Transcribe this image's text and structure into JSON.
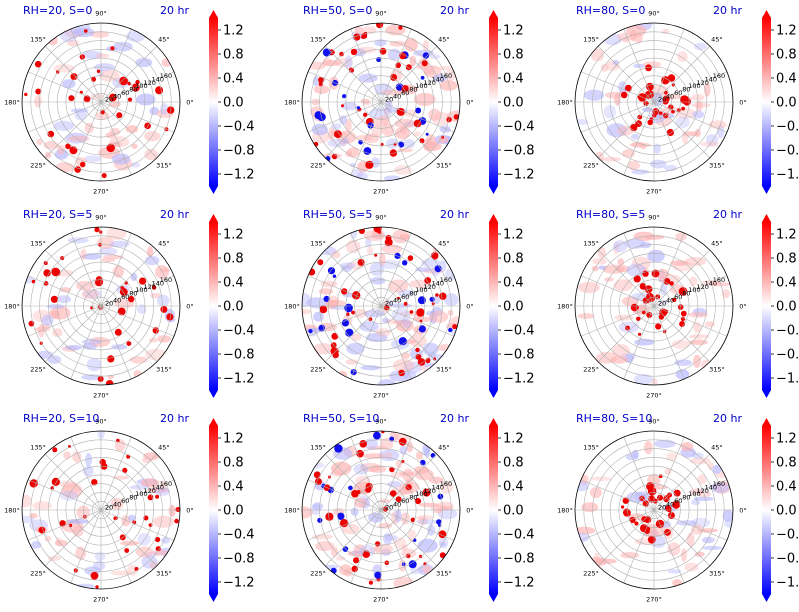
{
  "figure": {
    "time_label": "20 hr",
    "colormap": "bwr",
    "colorbar_ticks": [
      "1.2",
      "0.8",
      "0.4",
      "0.0",
      "−0.4",
      "−0.8",
      "−1.2"
    ],
    "colorbar_tick_values": [
      1.2,
      0.8,
      0.4,
      0.0,
      -0.4,
      -0.8,
      -1.2
    ],
    "colorbar_range": [
      -1.4,
      1.4
    ],
    "colorbar_extend": "both"
  },
  "chart_data": [
    {
      "type": "heatmap",
      "projection": "polar",
      "title": "RH=20, S=0",
      "title_right": "20 hr",
      "angle_ticks": [
        "0°",
        "45°",
        "90°",
        "135°",
        "180°",
        "225°",
        "270°",
        "315°"
      ],
      "radial_ticks": [
        "20",
        "40",
        "60",
        "80",
        "100",
        "120",
        "140",
        "160"
      ],
      "rlim": [
        0,
        180
      ]
    },
    {
      "type": "heatmap",
      "projection": "polar",
      "title": "RH=50, S=0",
      "title_right": "20 hr",
      "angle_ticks": [
        "0°",
        "45°",
        "90°",
        "135°",
        "180°",
        "225°",
        "270°",
        "315°"
      ],
      "radial_ticks": [
        "20",
        "40",
        "60",
        "80",
        "100",
        "120",
        "140",
        "160"
      ],
      "rlim": [
        0,
        180
      ]
    },
    {
      "type": "heatmap",
      "projection": "polar",
      "title": "RH=80, S=0",
      "title_right": "20 hr",
      "angle_ticks": [
        "0°",
        "45°",
        "90°",
        "135°",
        "180°",
        "225°",
        "270°",
        "315°"
      ],
      "radial_ticks": [
        "20",
        "40",
        "60",
        "80",
        "100",
        "120",
        "140",
        "160"
      ],
      "rlim": [
        0,
        180
      ]
    },
    {
      "type": "heatmap",
      "projection": "polar",
      "title": "RH=20, S=5",
      "title_right": "20 hr",
      "angle_ticks": [
        "0°",
        "45°",
        "90°",
        "135°",
        "180°",
        "225°",
        "270°",
        "315°"
      ],
      "radial_ticks": [
        "20",
        "40",
        "60",
        "80",
        "100",
        "120",
        "140",
        "160"
      ],
      "rlim": [
        0,
        180
      ]
    },
    {
      "type": "heatmap",
      "projection": "polar",
      "title": "RH=50, S=5",
      "title_right": "20 hr",
      "angle_ticks": [
        "0°",
        "45°",
        "90°",
        "135°",
        "180°",
        "225°",
        "270°",
        "315°"
      ],
      "radial_ticks": [
        "20",
        "40",
        "60",
        "80",
        "100",
        "120",
        "140",
        "160"
      ],
      "rlim": [
        0,
        180
      ]
    },
    {
      "type": "heatmap",
      "projection": "polar",
      "title": "RH=80, S=5",
      "title_right": "20 hr",
      "angle_ticks": [
        "0°",
        "45°",
        "90°",
        "135°",
        "180°",
        "225°",
        "270°",
        "315°"
      ],
      "radial_ticks": [
        "20",
        "40",
        "60",
        "80",
        "100",
        "120",
        "140",
        "160"
      ],
      "rlim": [
        0,
        180
      ]
    },
    {
      "type": "heatmap",
      "projection": "polar",
      "title": "RH=20, S=10",
      "title_right": "20 hr",
      "angle_ticks": [
        "0°",
        "45°",
        "90°",
        "135°",
        "180°",
        "225°",
        "270°",
        "315°"
      ],
      "radial_ticks": [
        "20",
        "40",
        "60",
        "80",
        "100",
        "120",
        "140",
        "160"
      ],
      "rlim": [
        0,
        180
      ]
    },
    {
      "type": "heatmap",
      "projection": "polar",
      "title": "RH=50, S=10",
      "title_right": "20 hr",
      "angle_ticks": [
        "0°",
        "45°",
        "90°",
        "135°",
        "180°",
        "225°",
        "270°",
        "315°"
      ],
      "radial_ticks": [
        "20",
        "40",
        "60",
        "80",
        "100",
        "120",
        "140",
        "160"
      ],
      "rlim": [
        0,
        180
      ]
    },
    {
      "type": "heatmap",
      "projection": "polar",
      "title": "RH=80, S=10",
      "title_right": "20 hr",
      "angle_ticks": [
        "0°",
        "45°",
        "90°",
        "135°",
        "180°",
        "225°",
        "270°",
        "315°"
      ],
      "radial_ticks": [
        "20",
        "40",
        "60",
        "80",
        "100",
        "120",
        "140",
        "160"
      ],
      "rlim": [
        0,
        180
      ]
    }
  ]
}
